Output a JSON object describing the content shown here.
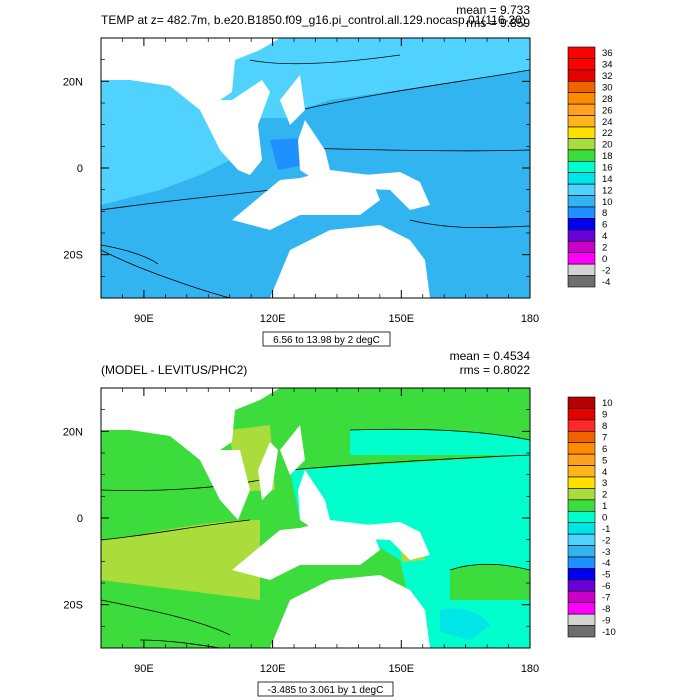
{
  "chart_data": [
    {
      "type": "heatmap",
      "title": "TEMP at z= 482.7m, b.e20.B1850.f09_g16.pi_control.all.129.nocasp.01(116-20)",
      "stats": {
        "mean": "mean = 9.733",
        "rms": "rms = 9.859"
      },
      "x_ticks": [
        "90E",
        "120E",
        "150E",
        "180"
      ],
      "y_ticks": [
        "20N",
        "0",
        "20S"
      ],
      "xlim": [
        80,
        180
      ],
      "ylim": [
        -30,
        30
      ],
      "contour_info": "6.56 to 13.98 by 2 degC",
      "colorbar": {
        "labels": [
          "36",
          "34",
          "32",
          "30",
          "28",
          "26",
          "24",
          "22",
          "20",
          "18",
          "16",
          "14",
          "12",
          "10",
          "8",
          "6",
          "4",
          "2",
          "0",
          "-2",
          "-4"
        ],
        "colors": [
          "#ff0000",
          "#ff0000",
          "#e60000",
          "#f06400",
          "#ff8c00",
          "#ffa020",
          "#ffb41e",
          "#ffe000",
          "#aadc3c",
          "#3cdc3c",
          "#00ffcc",
          "#00e6e6",
          "#50d2ff",
          "#32b4f0",
          "#1e90ff",
          "#0000f0",
          "#6a00d8",
          "#c800c8",
          "#ff00ff",
          "#d4d4d4",
          "#6e6e6e"
        ]
      }
    },
    {
      "type": "heatmap",
      "title": "(MODEL - LEVITUS/PHC2)",
      "stats": {
        "mean": "mean = 0.4534",
        "rms": "rms = 0.8022"
      },
      "x_ticks": [
        "90E",
        "120E",
        "150E",
        "180"
      ],
      "y_ticks": [
        "20N",
        "0",
        "20S"
      ],
      "xlim": [
        80,
        180
      ],
      "ylim": [
        -30,
        30
      ],
      "contour_info": "-3.485 to 3.061 by 1 degC",
      "colorbar": {
        "labels": [
          "10",
          "9",
          "8",
          "7",
          "6",
          "5",
          "4",
          "3",
          "2",
          "1",
          "0",
          "-1",
          "-2",
          "-3",
          "-4",
          "-5",
          "-6",
          "-7",
          "-8",
          "-9",
          "-10"
        ],
        "colors": [
          "#b40000",
          "#e60000",
          "#ff2828",
          "#f06400",
          "#ff8c00",
          "#ffa020",
          "#ffb41e",
          "#ffe000",
          "#aadc3c",
          "#3cdc3c",
          "#00ffcc",
          "#00e6e6",
          "#50d2ff",
          "#32b4f0",
          "#1e90ff",
          "#0000f0",
          "#6a00d8",
          "#c800c8",
          "#ff00ff",
          "#d4d4d4",
          "#6e6e6e"
        ]
      }
    }
  ]
}
